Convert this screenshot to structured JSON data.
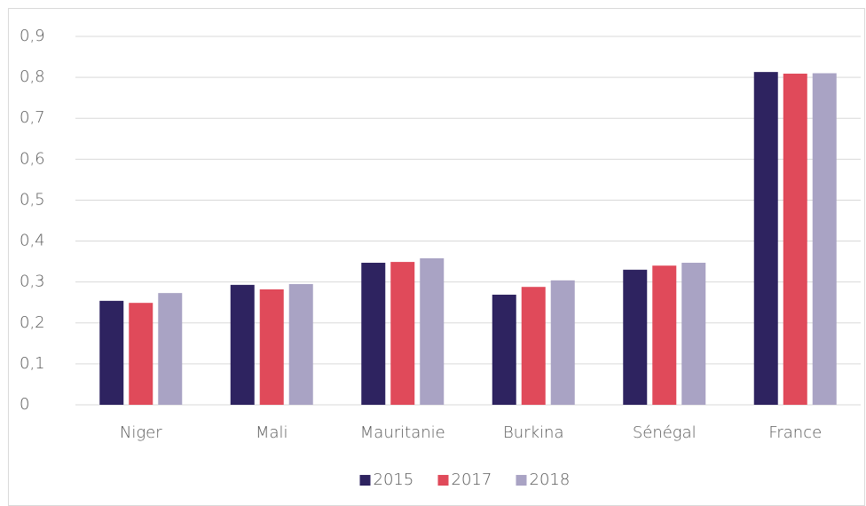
{
  "chart_data": {
    "type": "bar",
    "categories": [
      "Niger",
      "Mali",
      "Mauritanie",
      "Burkina",
      "Sénégal",
      "France"
    ],
    "series": [
      {
        "name": "2015",
        "color": "#2e2360",
        "values": [
          0.254,
          0.293,
          0.347,
          0.269,
          0.33,
          0.813
        ]
      },
      {
        "name": "2017",
        "color": "#e04a5a",
        "values": [
          0.249,
          0.282,
          0.349,
          0.288,
          0.34,
          0.809
        ]
      },
      {
        "name": "2018",
        "color": "#a9a3c4",
        "values": [
          0.273,
          0.295,
          0.358,
          0.304,
          0.347,
          0.81
        ]
      }
    ],
    "ylim": [
      0,
      0.9
    ],
    "yticks": [
      0,
      {
        "value": 0.1,
        "label": "0,1"
      },
      {
        "value": 0.2,
        "label": "0,2"
      },
      {
        "value": 0.3,
        "label": "0,3"
      },
      {
        "value": 0.4,
        "label": "0,4"
      },
      {
        "value": 0.5,
        "label": "0,5"
      },
      {
        "value": 0.6,
        "label": "0,6"
      },
      {
        "value": 0.7,
        "label": "0,7"
      },
      {
        "value": 0.8,
        "label": "0,8"
      },
      {
        "value": 0.9,
        "label": "0,9"
      }
    ],
    "grid": true,
    "legend": "bottom"
  }
}
